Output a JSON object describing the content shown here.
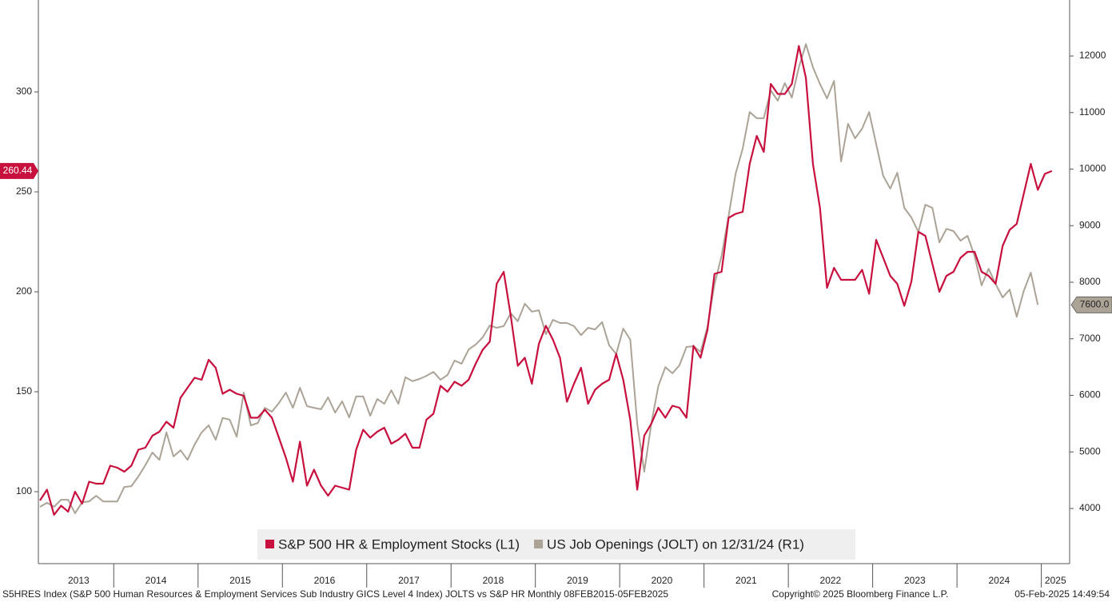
{
  "chart_data": {
    "type": "line",
    "legend": "bottom",
    "categories": [
      "2013",
      null,
      null,
      null,
      null,
      null,
      null,
      null,
      null,
      null,
      null,
      "2014",
      null,
      null,
      null,
      null,
      null,
      null,
      null,
      null,
      null,
      null,
      null,
      "2015",
      null,
      null,
      null,
      null,
      null,
      null,
      null,
      null,
      null,
      null,
      null,
      "2016",
      null,
      null,
      null,
      null,
      null,
      null,
      null,
      null,
      null,
      null,
      null,
      "2017",
      null,
      null,
      null,
      null,
      null,
      null,
      null,
      null,
      null,
      null,
      null,
      "2018",
      null,
      null,
      null,
      null,
      null,
      null,
      null,
      null,
      null,
      null,
      null,
      "2019",
      null,
      null,
      null,
      null,
      null,
      null,
      null,
      null,
      null,
      null,
      null,
      "2020",
      null,
      null,
      null,
      null,
      null,
      null,
      null,
      null,
      null,
      null,
      null,
      "2021",
      null,
      null,
      null,
      null,
      null,
      null,
      null,
      null,
      null,
      null,
      null,
      "2022",
      null,
      null,
      null,
      null,
      null,
      null,
      null,
      null,
      null,
      null,
      null,
      "2023",
      null,
      null,
      null,
      null,
      null,
      null,
      null,
      null,
      null,
      null,
      null,
      "2024",
      null,
      null,
      null,
      null,
      null,
      null,
      null,
      null,
      null,
      null,
      null,
      "2025",
      null
    ],
    "series": [
      {
        "name": "S&P 500 HR & Employment Stocks (L1)",
        "color": "#c8103e",
        "axis": "y",
        "values": [
          95.6,
          101,
          88.4,
          93,
          90,
          100,
          94,
          105,
          104,
          104,
          113,
          112,
          110,
          113,
          121,
          122,
          128,
          130,
          135,
          132,
          147,
          152,
          157,
          156,
          166,
          162,
          149,
          151,
          149,
          148,
          137,
          137,
          141,
          137,
          127,
          117,
          105,
          125,
          103,
          111,
          103,
          98,
          103,
          102,
          101,
          121,
          131,
          127,
          130,
          132,
          124,
          126,
          129,
          122,
          122,
          136,
          139,
          153,
          150,
          155,
          153,
          156,
          164,
          171,
          175,
          204,
          210,
          188,
          163,
          167,
          154,
          174,
          183,
          176,
          167,
          145,
          154,
          162,
          144,
          151,
          154,
          156,
          169,
          156,
          136,
          101,
          128,
          134,
          142,
          137,
          143,
          142,
          137,
          173,
          167,
          181,
          209,
          210,
          237,
          239,
          240,
          264,
          278,
          270,
          304,
          299,
          299,
          304,
          323,
          307,
          264,
          242,
          202,
          212,
          206,
          206,
          206,
          211,
          199,
          226,
          217,
          208,
          204,
          193,
          205,
          230,
          228,
          214,
          200,
          208,
          210,
          217,
          220,
          220,
          210,
          208,
          204,
          223,
          231,
          234,
          249,
          264,
          251,
          259,
          260.44
        ]
      },
      {
        "name": "US Job Openings (JOLT) on 12/31/24 (R1)",
        "color": "#aca397",
        "axis": "y2",
        "last_value_label": "7600.0",
        "values": [
          4028,
          4100,
          4030,
          4155,
          4155,
          3915,
          4110,
          4125,
          4225,
          4125,
          4125,
          4125,
          4380,
          4395,
          4565,
          4765,
          4990,
          4860,
          5345,
          4920,
          5030,
          4860,
          5130,
          5345,
          5470,
          5215,
          5600,
          5570,
          5270,
          6050,
          5470,
          5510,
          5780,
          5710,
          5865,
          6050,
          5780,
          6135,
          5810,
          5780,
          5755,
          5965,
          5695,
          5895,
          5610,
          5980,
          5980,
          5640,
          5935,
          5850,
          6090,
          5850,
          6320,
          6250,
          6290,
          6345,
          6415,
          6275,
          6360,
          6615,
          6560,
          6810,
          6900,
          7025,
          7235,
          7195,
          7225,
          7450,
          7310,
          7620,
          7480,
          7505,
          7080,
          7335,
          7280,
          7280,
          7225,
          7065,
          7195,
          7165,
          7295,
          6885,
          6730,
          7180,
          6985,
          5500,
          4650,
          5500,
          6165,
          6500,
          6390,
          6530,
          6855,
          6870,
          6770,
          7210,
          7970,
          8465,
          9170,
          9920,
          10360,
          11010,
          10900,
          10900,
          11390,
          11210,
          11520,
          11265,
          11800,
          12210,
          11800,
          11505,
          11250,
          11560,
          10135,
          10800,
          10545,
          10715,
          11010,
          10445,
          9880,
          9655,
          9935,
          9315,
          9145,
          8890,
          9370,
          9315,
          8705,
          8945,
          8905,
          8735,
          8820,
          8465,
          7945,
          8240,
          7970,
          7730,
          7870,
          7390,
          7845,
          8170,
          7600,
          null,
          null
        ]
      }
    ],
    "ylim": [
      64,
      346
    ],
    "yticks": [
      100,
      150,
      200,
      250,
      300
    ],
    "y2lim": [
      3025,
      12990
    ],
    "y2ticks": [
      4000,
      5000,
      6000,
      7000,
      8000,
      9000,
      10000,
      11000,
      12000
    ],
    "footer": {
      "source": "S5HRES Index (S&P 500 Human Resources & Employment Services Sub Industry GICS Level 4 Index) JOLTS vs S&P HR  Monthly 08FEB2015-05FEB2025",
      "copyright": "Copyright© 2025 Bloomberg Finance L.P.",
      "timestamp": "05-Feb-2025 14:49:54"
    }
  }
}
